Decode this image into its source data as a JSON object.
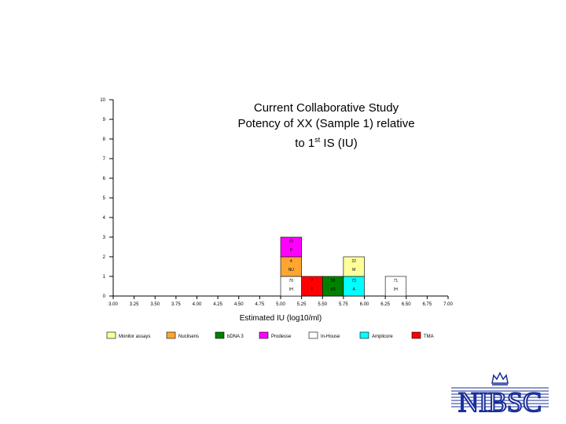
{
  "chart_data": {
    "type": "bar",
    "title_lines": [
      "Current Collaborative Study",
      "Potency of XX (Sample 1) relative",
      "to 1st IS (IU)"
    ],
    "xlabel": "Estimated IU (log10/ml)",
    "ylabel": "",
    "xlim": [
      3.0,
      7.0
    ],
    "ylim": [
      0,
      10
    ],
    "x_ticks": [
      "3.00",
      "3.25",
      "3.50",
      "3.75",
      "4.00",
      "4.25",
      "4.50",
      "4.75",
      "5.00",
      "5.25",
      "5.50",
      "5.75",
      "6.00",
      "6.25",
      "6.50",
      "6.75",
      "7.00"
    ],
    "y_ticks": [
      "0",
      "1",
      "2",
      "3",
      "4",
      "5",
      "6",
      "7",
      "8",
      "9",
      "10"
    ],
    "bin_width": 0.25,
    "boxes": [
      {
        "x": 5.0,
        "level": 0,
        "lab": "70",
        "code": "IH",
        "assay": "In-House"
      },
      {
        "x": 5.0,
        "level": 1,
        "lab": "4",
        "code": "NU",
        "assay": "Nuclisens"
      },
      {
        "x": 5.0,
        "level": 2,
        "lab": "72",
        "code": "P",
        "assay": "Prodesse"
      },
      {
        "x": 5.25,
        "level": 0,
        "lab": "7",
        "code": "T",
        "assay": "TMA"
      },
      {
        "x": 5.5,
        "level": 0,
        "lab": "58",
        "code": "B3",
        "assay": "bDNA 3"
      },
      {
        "x": 5.75,
        "level": 0,
        "lab": "73",
        "code": "A",
        "assay": "Amplicore"
      },
      {
        "x": 5.75,
        "level": 1,
        "lab": "22",
        "code": "M",
        "assay": "Monitor assays"
      },
      {
        "x": 6.25,
        "level": 0,
        "lab": "71",
        "code": "IH",
        "assay": "In-House"
      }
    ],
    "legend": [
      {
        "name": "Monitor assays",
        "color": "#ffff99"
      },
      {
        "name": "Nuclisens",
        "color": "#ffa531"
      },
      {
        "name": "bDNA 3",
        "color": "#008000"
      },
      {
        "name": "Prodesse",
        "color": "#ff00ff"
      },
      {
        "name": "In-House",
        "color": "#ffffff"
      },
      {
        "name": "Amplicore",
        "color": "#00ffff"
      },
      {
        "name": "TMA",
        "color": "#ff0000"
      }
    ],
    "legend_placement": "bottom",
    "grid": false
  },
  "logo": {
    "text": "NIBSC",
    "color": "#1a2f9a"
  }
}
